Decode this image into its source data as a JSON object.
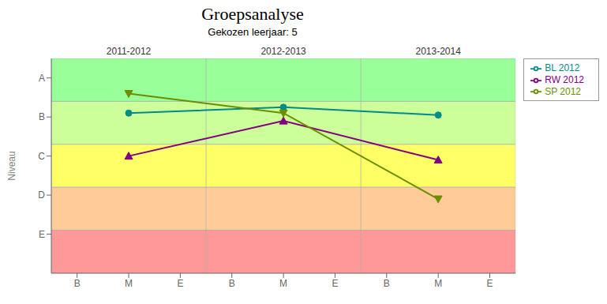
{
  "chart_data": {
    "type": "line",
    "title": "Groepsanalyse",
    "subtitle": "Gekozen leerjaar: 5",
    "y_label": "Niveau",
    "x": [
      1,
      4,
      7
    ],
    "series": [
      {
        "name": "BL 2012",
        "color": "#008b8b",
        "marker": "circle",
        "values": [
          2.8,
          2.5,
          2.9
        ]
      },
      {
        "name": "RW 2012",
        "color": "#800080",
        "marker": "triangle-up",
        "values": [
          5.0,
          3.2,
          5.2
        ]
      },
      {
        "name": "SP 2012",
        "color": "#6b8e00",
        "marker": "triangle-down",
        "values": [
          1.8,
          2.8,
          7.2
        ]
      }
    ],
    "xlim": [
      -0.5,
      8.5
    ],
    "xticks": [
      {
        "value": 0,
        "label": "B"
      },
      {
        "value": 1,
        "label": "M"
      },
      {
        "value": 2,
        "label": "E"
      },
      {
        "value": 3,
        "label": "B"
      },
      {
        "value": 4,
        "label": "M"
      },
      {
        "value": 5,
        "label": "E"
      },
      {
        "value": 6,
        "label": "B"
      },
      {
        "value": 7,
        "label": "M"
      },
      {
        "value": 8,
        "label": "E"
      }
    ],
    "ylim": [
      0,
      11
    ],
    "yticks": [
      {
        "value": 1,
        "label": "A"
      },
      {
        "value": 3,
        "label": "B"
      },
      {
        "value": 5,
        "label": "C"
      },
      {
        "value": 7,
        "label": "D"
      },
      {
        "value": 9,
        "label": "E"
      }
    ],
    "bands": [
      {
        "from": 0,
        "to": 2.2,
        "color": "#99ff99"
      },
      {
        "from": 2.2,
        "to": 4.4,
        "color": "#ccff99"
      },
      {
        "from": 4.4,
        "to": 6.6,
        "color": "#ffff66"
      },
      {
        "from": 6.6,
        "to": 8.8,
        "color": "#ffcc99"
      },
      {
        "from": 8.8,
        "to": 11,
        "color": "#ff9999"
      }
    ],
    "vlines": [
      2.5,
      5.5
    ],
    "annotations": [
      {
        "text": "2011-2012",
        "x": 1
      },
      {
        "text": "2012-2013",
        "x": 4
      },
      {
        "text": "2013-2014",
        "x": 7
      }
    ],
    "grid": false,
    "legend": "right"
  }
}
